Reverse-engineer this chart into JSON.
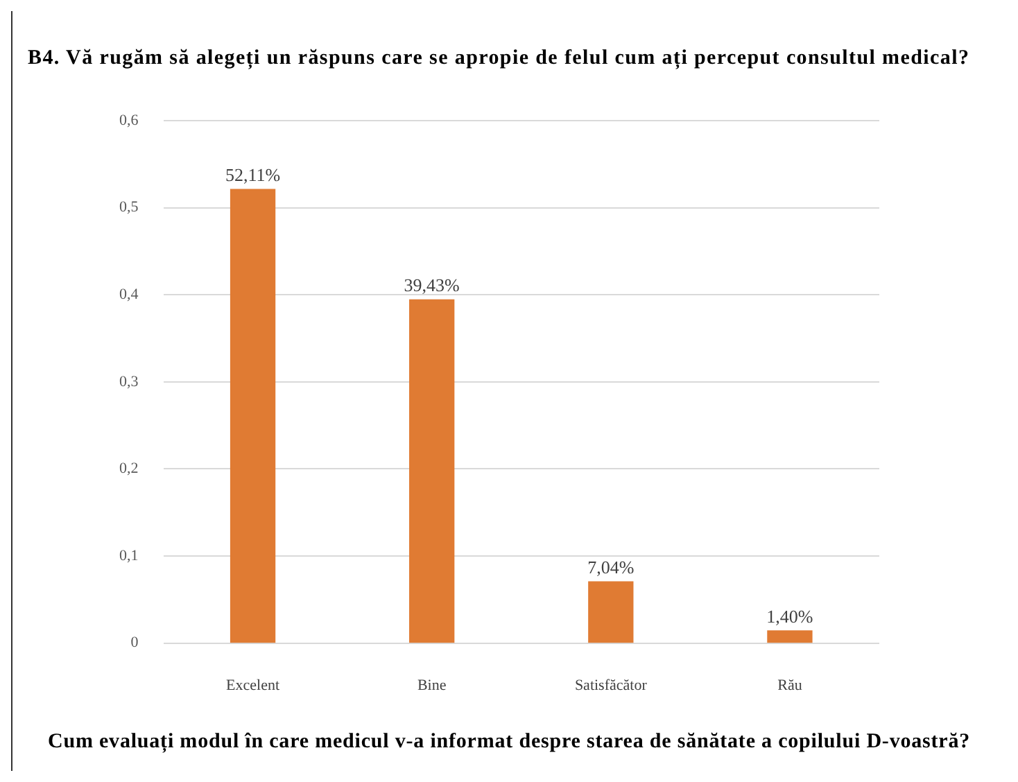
{
  "chart_data": {
    "type": "bar",
    "title": "B4. Vă rugăm să alegeți un răspuns care se apropie de felul cum ați perceput consultul medical?",
    "xlabel": "Cum evaluați modul în care medicul v-a informat despre starea de sănătate a copilului D-voastră?",
    "categories": [
      "Excelent",
      "Bine",
      "Satisfăcător",
      "Rău"
    ],
    "values": [
      0.5211,
      0.3943,
      0.0704,
      0.014
    ],
    "value_labels": [
      "52,11%",
      "39,43%",
      "7,04%",
      "1,40%"
    ],
    "color": "#e07b33",
    "ylim": [
      0,
      0.6
    ],
    "yticks": [
      0,
      {
        "value": 0.1,
        "label": "0,1"
      },
      {
        "value": 0.2,
        "label": "0,2"
      },
      {
        "value": 0.3,
        "label": "0,3"
      },
      {
        "value": 0.4,
        "label": "0,4"
      },
      {
        "value": 0.5,
        "label": "0,5"
      },
      {
        "value": 0.6,
        "label": "0,6"
      }
    ],
    "grid": "y"
  }
}
